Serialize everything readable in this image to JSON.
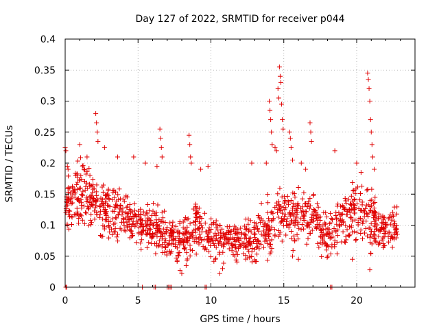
{
  "chart_data": {
    "type": "scatter",
    "title": "Day 127 of 2022, SRMTID for receiver p044",
    "xlabel": "GPS time / hours",
    "ylabel": "SRMTID / TECUs",
    "xlim": [
      0,
      24
    ],
    "ylim": [
      0,
      0.4
    ],
    "x_ticks": [
      0,
      5,
      10,
      15,
      20
    ],
    "y_ticks": [
      0,
      0.05,
      0.1,
      0.15,
      0.2,
      0.25,
      0.3,
      0.35,
      0.4
    ],
    "x_tick_labels": [
      "0",
      "5",
      "10",
      "15",
      "20"
    ],
    "y_tick_labels": [
      "0",
      "0.05",
      "0.1",
      "0.15",
      "0.2",
      "0.25",
      "0.3",
      "0.35",
      "0.4"
    ],
    "grid": true,
    "marker": "+",
    "color": "#e00000",
    "series_trend": [
      {
        "x": 0.0,
        "y": 0.14,
        "spread": 0.04
      },
      {
        "x": 1.0,
        "y": 0.15,
        "spread": 0.04
      },
      {
        "x": 2.0,
        "y": 0.14,
        "spread": 0.04
      },
      {
        "x": 3.0,
        "y": 0.12,
        "spread": 0.04
      },
      {
        "x": 4.0,
        "y": 0.12,
        "spread": 0.035
      },
      {
        "x": 5.0,
        "y": 0.1,
        "spread": 0.03
      },
      {
        "x": 6.0,
        "y": 0.1,
        "spread": 0.03
      },
      {
        "x": 7.0,
        "y": 0.08,
        "spread": 0.03
      },
      {
        "x": 8.0,
        "y": 0.07,
        "spread": 0.03
      },
      {
        "x": 9.0,
        "y": 0.1,
        "spread": 0.04
      },
      {
        "x": 10.0,
        "y": 0.08,
        "spread": 0.03
      },
      {
        "x": 11.0,
        "y": 0.08,
        "spread": 0.03
      },
      {
        "x": 12.0,
        "y": 0.07,
        "spread": 0.025
      },
      {
        "x": 13.0,
        "y": 0.08,
        "spread": 0.03
      },
      {
        "x": 14.0,
        "y": 0.1,
        "spread": 0.04
      },
      {
        "x": 15.0,
        "y": 0.12,
        "spread": 0.04
      },
      {
        "x": 16.0,
        "y": 0.11,
        "spread": 0.035
      },
      {
        "x": 17.0,
        "y": 0.11,
        "spread": 0.035
      },
      {
        "x": 18.0,
        "y": 0.08,
        "spread": 0.03
      },
      {
        "x": 19.0,
        "y": 0.11,
        "spread": 0.035
      },
      {
        "x": 20.0,
        "y": 0.12,
        "spread": 0.04
      },
      {
        "x": 21.0,
        "y": 0.11,
        "spread": 0.04
      },
      {
        "x": 22.0,
        "y": 0.09,
        "spread": 0.03
      },
      {
        "x": 22.8,
        "y": 0.1,
        "spread": 0.03
      }
    ],
    "peak_points": [
      {
        "x": 0.0,
        "y": 0.225
      },
      {
        "x": 0.05,
        "y": 0.22
      },
      {
        "x": 0.15,
        "y": 0.195
      },
      {
        "x": 0.2,
        "y": 0.19
      },
      {
        "x": 1.0,
        "y": 0.23
      },
      {
        "x": 1.5,
        "y": 0.21
      },
      {
        "x": 2.1,
        "y": 0.28
      },
      {
        "x": 2.15,
        "y": 0.265
      },
      {
        "x": 2.2,
        "y": 0.25
      },
      {
        "x": 2.25,
        "y": 0.235
      },
      {
        "x": 2.7,
        "y": 0.225
      },
      {
        "x": 3.6,
        "y": 0.21
      },
      {
        "x": 4.7,
        "y": 0.21
      },
      {
        "x": 5.5,
        "y": 0.2
      },
      {
        "x": 6.3,
        "y": 0.195
      },
      {
        "x": 6.5,
        "y": 0.255
      },
      {
        "x": 6.55,
        "y": 0.24
      },
      {
        "x": 6.6,
        "y": 0.225
      },
      {
        "x": 6.65,
        "y": 0.21
      },
      {
        "x": 8.5,
        "y": 0.245
      },
      {
        "x": 8.55,
        "y": 0.23
      },
      {
        "x": 8.6,
        "y": 0.21
      },
      {
        "x": 8.65,
        "y": 0.2
      },
      {
        "x": 9.3,
        "y": 0.19
      },
      {
        "x": 9.8,
        "y": 0.195
      },
      {
        "x": 12.8,
        "y": 0.2
      },
      {
        "x": 13.8,
        "y": 0.2
      },
      {
        "x": 14.0,
        "y": 0.3
      },
      {
        "x": 14.05,
        "y": 0.285
      },
      {
        "x": 14.1,
        "y": 0.27
      },
      {
        "x": 14.15,
        "y": 0.25
      },
      {
        "x": 14.2,
        "y": 0.23
      },
      {
        "x": 14.4,
        "y": 0.225
      },
      {
        "x": 14.5,
        "y": 0.22
      },
      {
        "x": 14.6,
        "y": 0.32
      },
      {
        "x": 14.65,
        "y": 0.305
      },
      {
        "x": 14.7,
        "y": 0.355
      },
      {
        "x": 14.75,
        "y": 0.34
      },
      {
        "x": 14.8,
        "y": 0.33
      },
      {
        "x": 14.85,
        "y": 0.295
      },
      {
        "x": 14.9,
        "y": 0.27
      },
      {
        "x": 14.95,
        "y": 0.255
      },
      {
        "x": 15.4,
        "y": 0.25
      },
      {
        "x": 15.45,
        "y": 0.24
      },
      {
        "x": 15.5,
        "y": 0.225
      },
      {
        "x": 15.6,
        "y": 0.205
      },
      {
        "x": 16.2,
        "y": 0.2
      },
      {
        "x": 16.5,
        "y": 0.19
      },
      {
        "x": 16.8,
        "y": 0.265
      },
      {
        "x": 16.85,
        "y": 0.25
      },
      {
        "x": 16.9,
        "y": 0.235
      },
      {
        "x": 18.5,
        "y": 0.22
      },
      {
        "x": 20.0,
        "y": 0.2
      },
      {
        "x": 20.3,
        "y": 0.185
      },
      {
        "x": 20.75,
        "y": 0.345
      },
      {
        "x": 20.8,
        "y": 0.335
      },
      {
        "x": 20.85,
        "y": 0.32
      },
      {
        "x": 20.9,
        "y": 0.3
      },
      {
        "x": 20.95,
        "y": 0.27
      },
      {
        "x": 21.0,
        "y": 0.25
      },
      {
        "x": 21.05,
        "y": 0.23
      },
      {
        "x": 21.1,
        "y": 0.21
      },
      {
        "x": 21.2,
        "y": 0.19
      }
    ],
    "low_points": [
      {
        "x": 8.0,
        "y": 0.022
      },
      {
        "x": 8.3,
        "y": 0.035
      },
      {
        "x": 10.6,
        "y": 0.022
      },
      {
        "x": 10.8,
        "y": 0.03
      },
      {
        "x": 20.9,
        "y": 0.028
      },
      {
        "x": 15.6,
        "y": 0.05
      },
      {
        "x": 16.0,
        "y": 0.045
      },
      {
        "x": 19.7,
        "y": 0.045
      }
    ],
    "zero_points": [
      {
        "x": 0.05,
        "y": 0
      },
      {
        "x": 0.1,
        "y": 0
      },
      {
        "x": 5.3,
        "y": 0
      },
      {
        "x": 6.1,
        "y": 0
      },
      {
        "x": 6.2,
        "y": 0
      },
      {
        "x": 7.0,
        "y": 0
      },
      {
        "x": 7.1,
        "y": 0
      },
      {
        "x": 7.2,
        "y": 0
      },
      {
        "x": 7.3,
        "y": 0
      },
      {
        "x": 9.6,
        "y": 0
      },
      {
        "x": 9.7,
        "y": 0
      },
      {
        "x": 18.2,
        "y": 0
      },
      {
        "x": 18.3,
        "y": 0
      }
    ]
  }
}
